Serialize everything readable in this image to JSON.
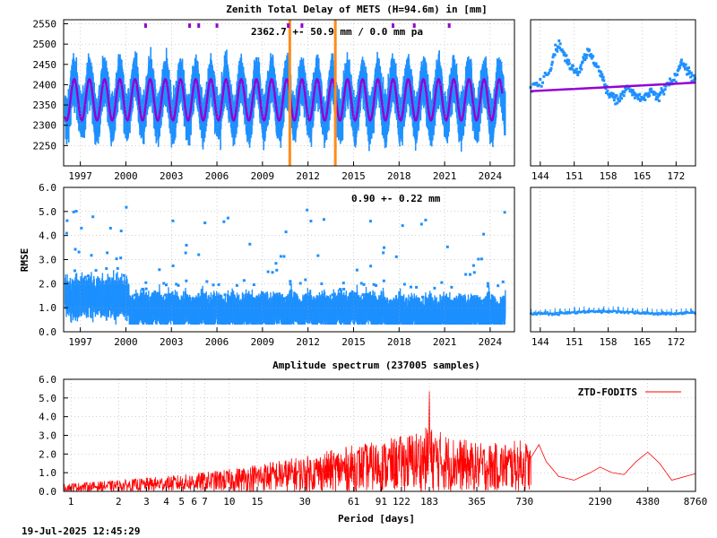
{
  "footer": {
    "timestamp": "19-Jul-2025 12:45:29"
  },
  "colors": {
    "ztd": "#1e90ff",
    "model": "#9400d3",
    "event": "#ff8c1a",
    "spectrum": "#ff0000"
  },
  "chart_data": [
    {
      "type": "scatter",
      "title": "Zenith Total Delay of METS (H=94.6m) in [mm]",
      "annotation": "2362.7 +-  50.9 mm /  0.0 mm pa",
      "ylim": [
        2200,
        2560
      ],
      "yticks": [
        2250,
        2300,
        2350,
        2400,
        2450,
        2500,
        2550
      ],
      "xlim": [
        1995.9,
        2025.6
      ],
      "xticks": [
        1997,
        2000,
        2003,
        2006,
        2009,
        2012,
        2015,
        2018,
        2021,
        2024
      ],
      "series": [
        {
          "model": "seasonal",
          "mean": 2362.7,
          "amplitude": 50.9,
          "trend": 0.0,
          "scatter": 90
        }
      ],
      "events": [
        2010.8,
        2013.8
      ],
      "markers_top": [
        2001.3,
        2004.2,
        2004.8,
        2006.0,
        2010.7,
        2011.6,
        2017.6,
        2019.0,
        2021.3
      ],
      "grid": true
    },
    {
      "type": "scatter",
      "xlim": [
        142,
        176
      ],
      "xticks": [
        144,
        151,
        158,
        165,
        172
      ],
      "ylim": [
        2200,
        2560
      ],
      "series": [
        {
          "model": "daily",
          "start": 2384,
          "end": 2405,
          "points": [
            [
              142,
              2395
            ],
            [
              144,
              2405
            ],
            [
              146,
              2440
            ],
            [
              147,
              2485
            ],
            [
              148,
              2500
            ],
            [
              149,
              2470
            ],
            [
              150,
              2450
            ],
            [
              151,
              2440
            ],
            [
              152,
              2430
            ],
            [
              153,
              2470
            ],
            [
              154,
              2480
            ],
            [
              155,
              2460
            ],
            [
              156,
              2440
            ],
            [
              157,
              2410
            ],
            [
              158,
              2380
            ],
            [
              159,
              2375
            ],
            [
              160,
              2360
            ],
            [
              161,
              2375
            ],
            [
              162,
              2395
            ],
            [
              163,
              2380
            ],
            [
              164,
              2370
            ],
            [
              165,
              2360
            ],
            [
              166,
              2375
            ],
            [
              167,
              2385
            ],
            [
              168,
              2365
            ],
            [
              169,
              2380
            ],
            [
              170,
              2395
            ],
            [
              171,
              2405
            ],
            [
              172,
              2420
            ],
            [
              173,
              2460
            ],
            [
              174,
              2440
            ],
            [
              175,
              2425
            ],
            [
              176,
              2410
            ]
          ]
        }
      ],
      "grid": true
    },
    {
      "type": "scatter",
      "ylabel": "RMSE",
      "annotation": "0.90 +-  0.22 mm",
      "ylim": [
        0,
        6
      ],
      "yticks": [
        0,
        1,
        2,
        3,
        4,
        5,
        6
      ],
      "ytick_labels": [
        "0.0",
        "1.0",
        "2.0",
        "3.0",
        "4.0",
        "5.0",
        "6.0"
      ],
      "xlim": [
        1995.9,
        2025.6
      ],
      "xticks": [
        1997,
        2000,
        2003,
        2006,
        2009,
        2012,
        2015,
        2018,
        2021,
        2024
      ],
      "series": [
        {
          "mean": 0.9,
          "std": 0.22,
          "early_level": 1.45,
          "early_until": 2000.2
        }
      ],
      "grid": true
    },
    {
      "type": "scatter",
      "xlim": [
        142,
        176
      ],
      "xticks": [
        144,
        151,
        158,
        165,
        172
      ],
      "ylim": [
        0,
        6
      ],
      "series": [
        {
          "level": 0.8
        }
      ],
      "grid": true
    },
    {
      "type": "line",
      "title": "Amplitude spectrum (237005 samples)",
      "xlabel": "Period [days]",
      "xscale": "log",
      "xlim": [
        0.9,
        8760
      ],
      "xticks": [
        1,
        2,
        3,
        4,
        5,
        6,
        7,
        10,
        15,
        30,
        61,
        91,
        122,
        183,
        365,
        730,
        2190,
        4380,
        8760
      ],
      "ylim": [
        0,
        6
      ],
      "yticks": [
        0,
        1,
        2,
        3,
        4,
        5,
        6
      ],
      "ytick_labels": [
        "0.0",
        "1.0",
        "2.0",
        "3.0",
        "4.0",
        "5.0",
        "6.0"
      ],
      "series": [
        {
          "name": "ZTD-FODITS",
          "envelope": [
            [
              0.9,
              0.4
            ],
            [
              1,
              0.45
            ],
            [
              2,
              0.6
            ],
            [
              5,
              0.9
            ],
            [
              10,
              1.2
            ],
            [
              15,
              1.5
            ],
            [
              30,
              1.9
            ],
            [
              61,
              2.5
            ],
            [
              91,
              2.7
            ],
            [
              122,
              3.0
            ],
            [
              183,
              3.5
            ],
            [
              250,
              3.0
            ],
            [
              365,
              2.6
            ],
            [
              500,
              2.6
            ],
            [
              730,
              2.8
            ],
            [
              1000,
              1.5
            ]
          ],
          "peak": [
            183,
            5.6
          ],
          "tail": [
            [
              800,
              1.8
            ],
            [
              900,
              2.5
            ],
            [
              1000,
              1.6
            ],
            [
              1200,
              0.8
            ],
            [
              1500,
              0.6
            ],
            [
              1900,
              1.0
            ],
            [
              2190,
              1.3
            ],
            [
              2600,
              1.0
            ],
            [
              3100,
              0.9
            ],
            [
              3700,
              1.6
            ],
            [
              4380,
              2.1
            ],
            [
              5200,
              1.5
            ],
            [
              6200,
              0.6
            ],
            [
              8760,
              0.95
            ]
          ]
        }
      ],
      "legend": "top-right",
      "grid": true
    }
  ]
}
